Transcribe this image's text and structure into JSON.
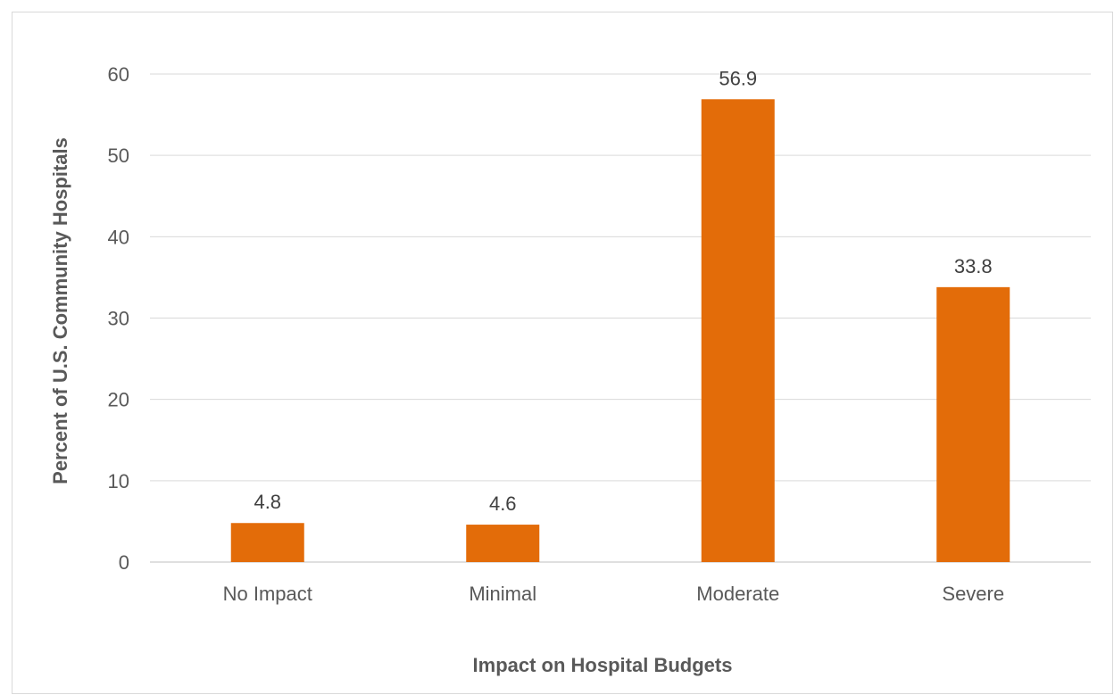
{
  "chart_data": {
    "type": "bar",
    "title": "",
    "xlabel": "Impact on Hospital Budgets",
    "ylabel": "Percent of U.S. Community Hospitals",
    "categories": [
      "No Impact",
      "Minimal",
      "Moderate",
      "Severe"
    ],
    "values": [
      4.8,
      4.6,
      56.9,
      33.8
    ],
    "value_labels": [
      "4.8",
      "4.6",
      "56.9",
      "33.8"
    ],
    "ylim": [
      0,
      60
    ],
    "yticks": [
      0,
      10,
      20,
      30,
      40,
      50,
      60
    ],
    "ytick_labels": [
      "0",
      "10",
      "20",
      "30",
      "40",
      "50",
      "60"
    ],
    "grid": true,
    "legend": "none",
    "colors": {
      "bar": "#e36c09",
      "grid": "#d9d9d9",
      "axis_line": "#bfbfbf",
      "frame": "#d9d9d9"
    }
  }
}
